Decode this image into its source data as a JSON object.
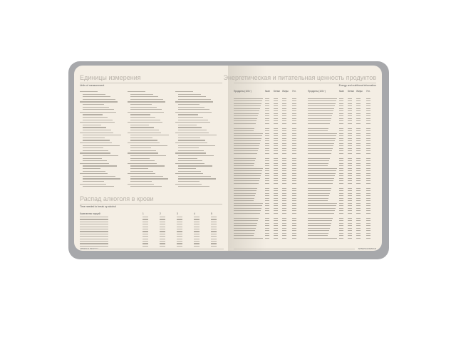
{
  "left_page": {
    "units": {
      "title": "Единицы измерения",
      "subtitle": "Units of measurement"
    },
    "alcohol": {
      "title": "Распад алкоголя в крови",
      "subtitle": "Time needed to break up alcohol",
      "header": [
        "Количество порций",
        "1",
        "2",
        "3",
        "4",
        "5"
      ]
    },
    "footer_logo": "ARSENALDESIGN"
  },
  "right_page": {
    "title": "Энергетическая и питательная ценность продуктов",
    "subtitle": "Energy and nutritional information",
    "header": [
      "Продукты (100 г)",
      "Ккал",
      "Белки",
      "Жиры",
      "Угл."
    ],
    "footer_logo": "ARSENALDESIGN"
  },
  "colors": {
    "cover": "#a7a8ab",
    "paper": "#f4eee4",
    "heading": "#b9b3aa"
  }
}
